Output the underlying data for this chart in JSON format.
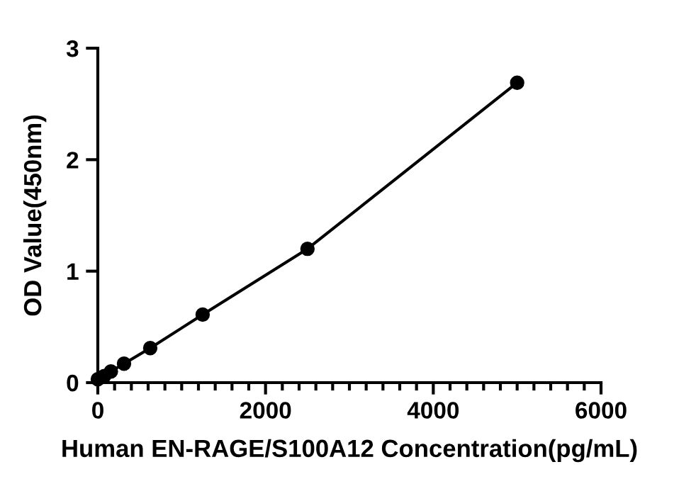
{
  "chart_data": {
    "type": "scatter",
    "xlabel": "Human EN-RAGE/S100A12 Concentration(pg/mL)",
    "ylabel": "OD Value(450nm)",
    "x": [
      0,
      78.125,
      156.25,
      312.5,
      625,
      1250,
      2500,
      5000
    ],
    "series": [
      {
        "color": "#000000",
        "values": [
          0.03,
          0.06,
          0.1,
          0.17,
          0.31,
          0.61,
          1.2,
          2.69
        ]
      },
      {
        "type": "line",
        "marker": "none",
        "color": "#000000",
        "x": [
          0,
          78.125,
          156.25,
          312.5,
          625,
          1250,
          2500,
          5000
        ],
        "values": [
          0.03,
          0.06,
          0.1,
          0.17,
          0.31,
          0.61,
          1.2,
          2.69
        ]
      }
    ],
    "marker": "circle",
    "xlim": [
      0,
      6000
    ],
    "ylim": [
      0,
      3
    ],
    "xticks": [
      0,
      {
        "value": 200,
        "label": null
      },
      {
        "value": 400,
        "label": null
      },
      {
        "value": 600,
        "label": null
      },
      {
        "value": 800,
        "label": null
      },
      {
        "value": 1000,
        "label": null
      },
      {
        "value": 1200,
        "label": null
      },
      {
        "value": 1400,
        "label": null
      },
      {
        "value": 1600,
        "label": null
      },
      {
        "value": 1800,
        "label": null
      },
      2000,
      {
        "value": 2200,
        "label": null
      },
      {
        "value": 2400,
        "label": null
      },
      {
        "value": 2600,
        "label": null
      },
      {
        "value": 2800,
        "label": null
      },
      {
        "value": 3000,
        "label": null
      },
      {
        "value": 3200,
        "label": null
      },
      {
        "value": 3400,
        "label": null
      },
      {
        "value": 3600,
        "label": null
      },
      {
        "value": 3800,
        "label": null
      },
      4000,
      {
        "value": 4200,
        "label": null
      },
      {
        "value": 4400,
        "label": null
      },
      {
        "value": 4600,
        "label": null
      },
      {
        "value": 4800,
        "label": null
      },
      {
        "value": 5000,
        "label": null
      },
      {
        "value": 5200,
        "label": null
      },
      {
        "value": 5400,
        "label": null
      },
      {
        "value": 5600,
        "label": null
      },
      {
        "value": 5800,
        "label": null
      },
      6000
    ],
    "yticks": [
      0,
      1,
      2,
      3
    ],
    "grid": false
  }
}
